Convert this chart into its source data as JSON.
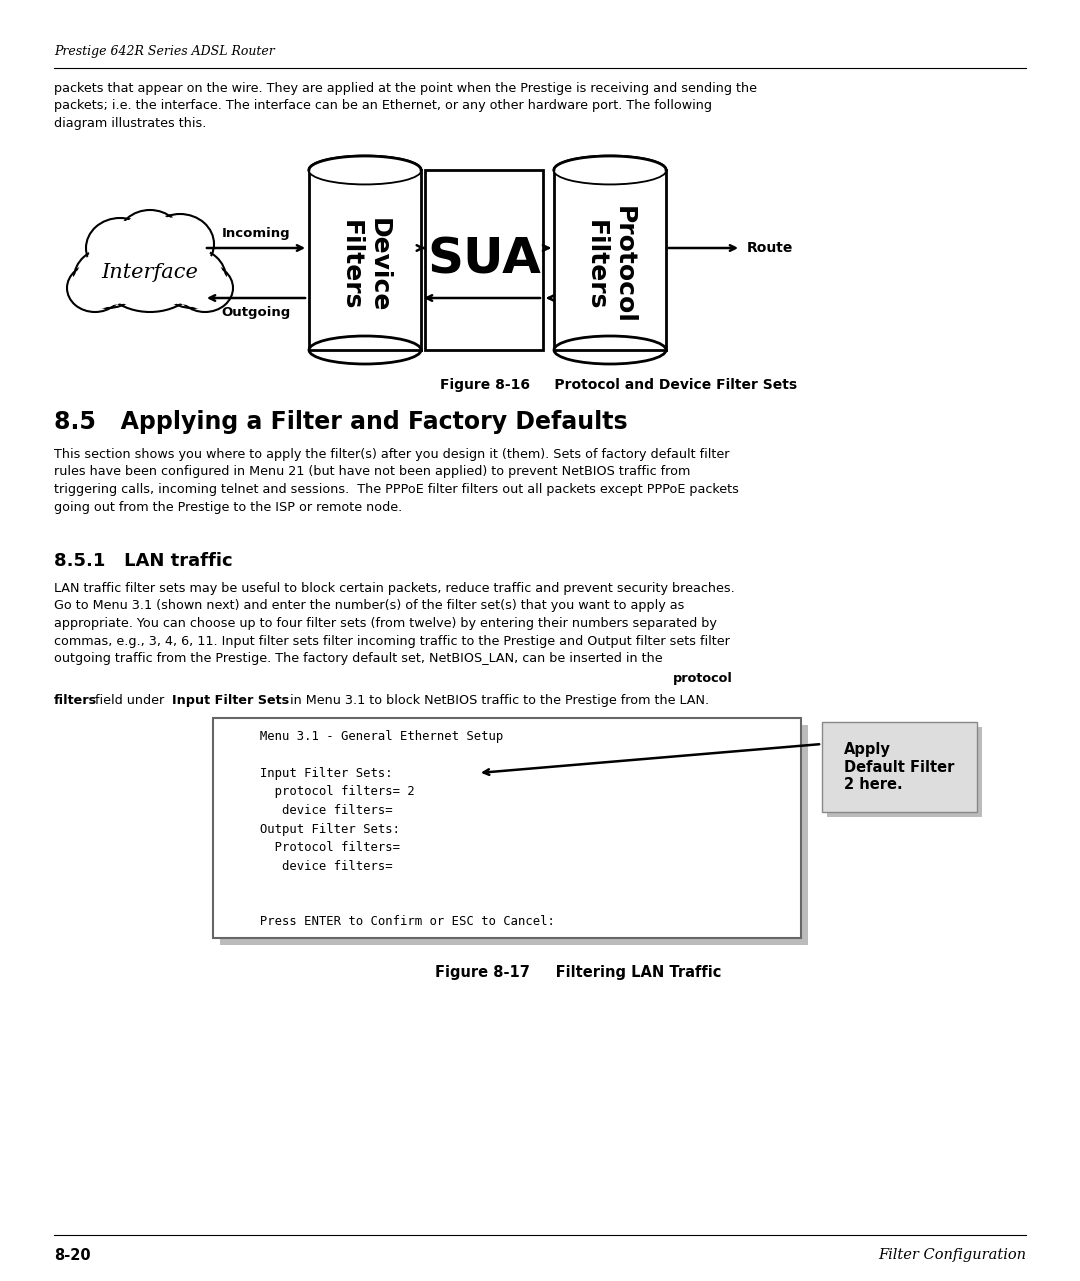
{
  "page_bg": "#ffffff",
  "header_text": "Prestige 642R Series ADSL Router",
  "intro_paragraph": "packets that appear on the wire. They are applied at the point when the Prestige is receiving and sending the\npackets; i.e. the interface. The interface can be an Ethernet, or any other hardware port. The following\ndiagram illustrates this.",
  "fig16_caption_bold": "Figure 8-16",
  "fig16_caption_rest": "     Protocol and Device Filter Sets",
  "section_title": "8.5   Applying a Filter and Factory Defaults",
  "section_para": "This section shows you where to apply the filter(s) after you design it (them). Sets of factory default filter\nrules have been configured in Menu 21 (but have not been applied) to prevent NetBIOS traffic from\ntriggering calls, incoming telnet and sessions.  The PPPoE filter filters out all packets except PPPoE packets\ngoing out from the Prestige to the ISP or remote node.",
  "subsection_title": "8.5.1   LAN traffic",
  "menu_box_lines": [
    "     Menu 3.1 - General Ethernet Setup",
    "",
    "     Input Filter Sets:",
    "       protocol filters= 2",
    "        device filters=",
    "     Output Filter Sets:",
    "       Protocol filters=",
    "        device filters=",
    "",
    "",
    "     Press ENTER to Confirm or ESC to Cancel:"
  ],
  "callout_text": "Apply\nDefault Filter\n2 here.",
  "fig17_caption_bold": "Figure 8-17",
  "fig17_caption_rest": "     Filtering LAN Traffic",
  "footer_left": "8-20",
  "footer_right": "Filter Configuration"
}
